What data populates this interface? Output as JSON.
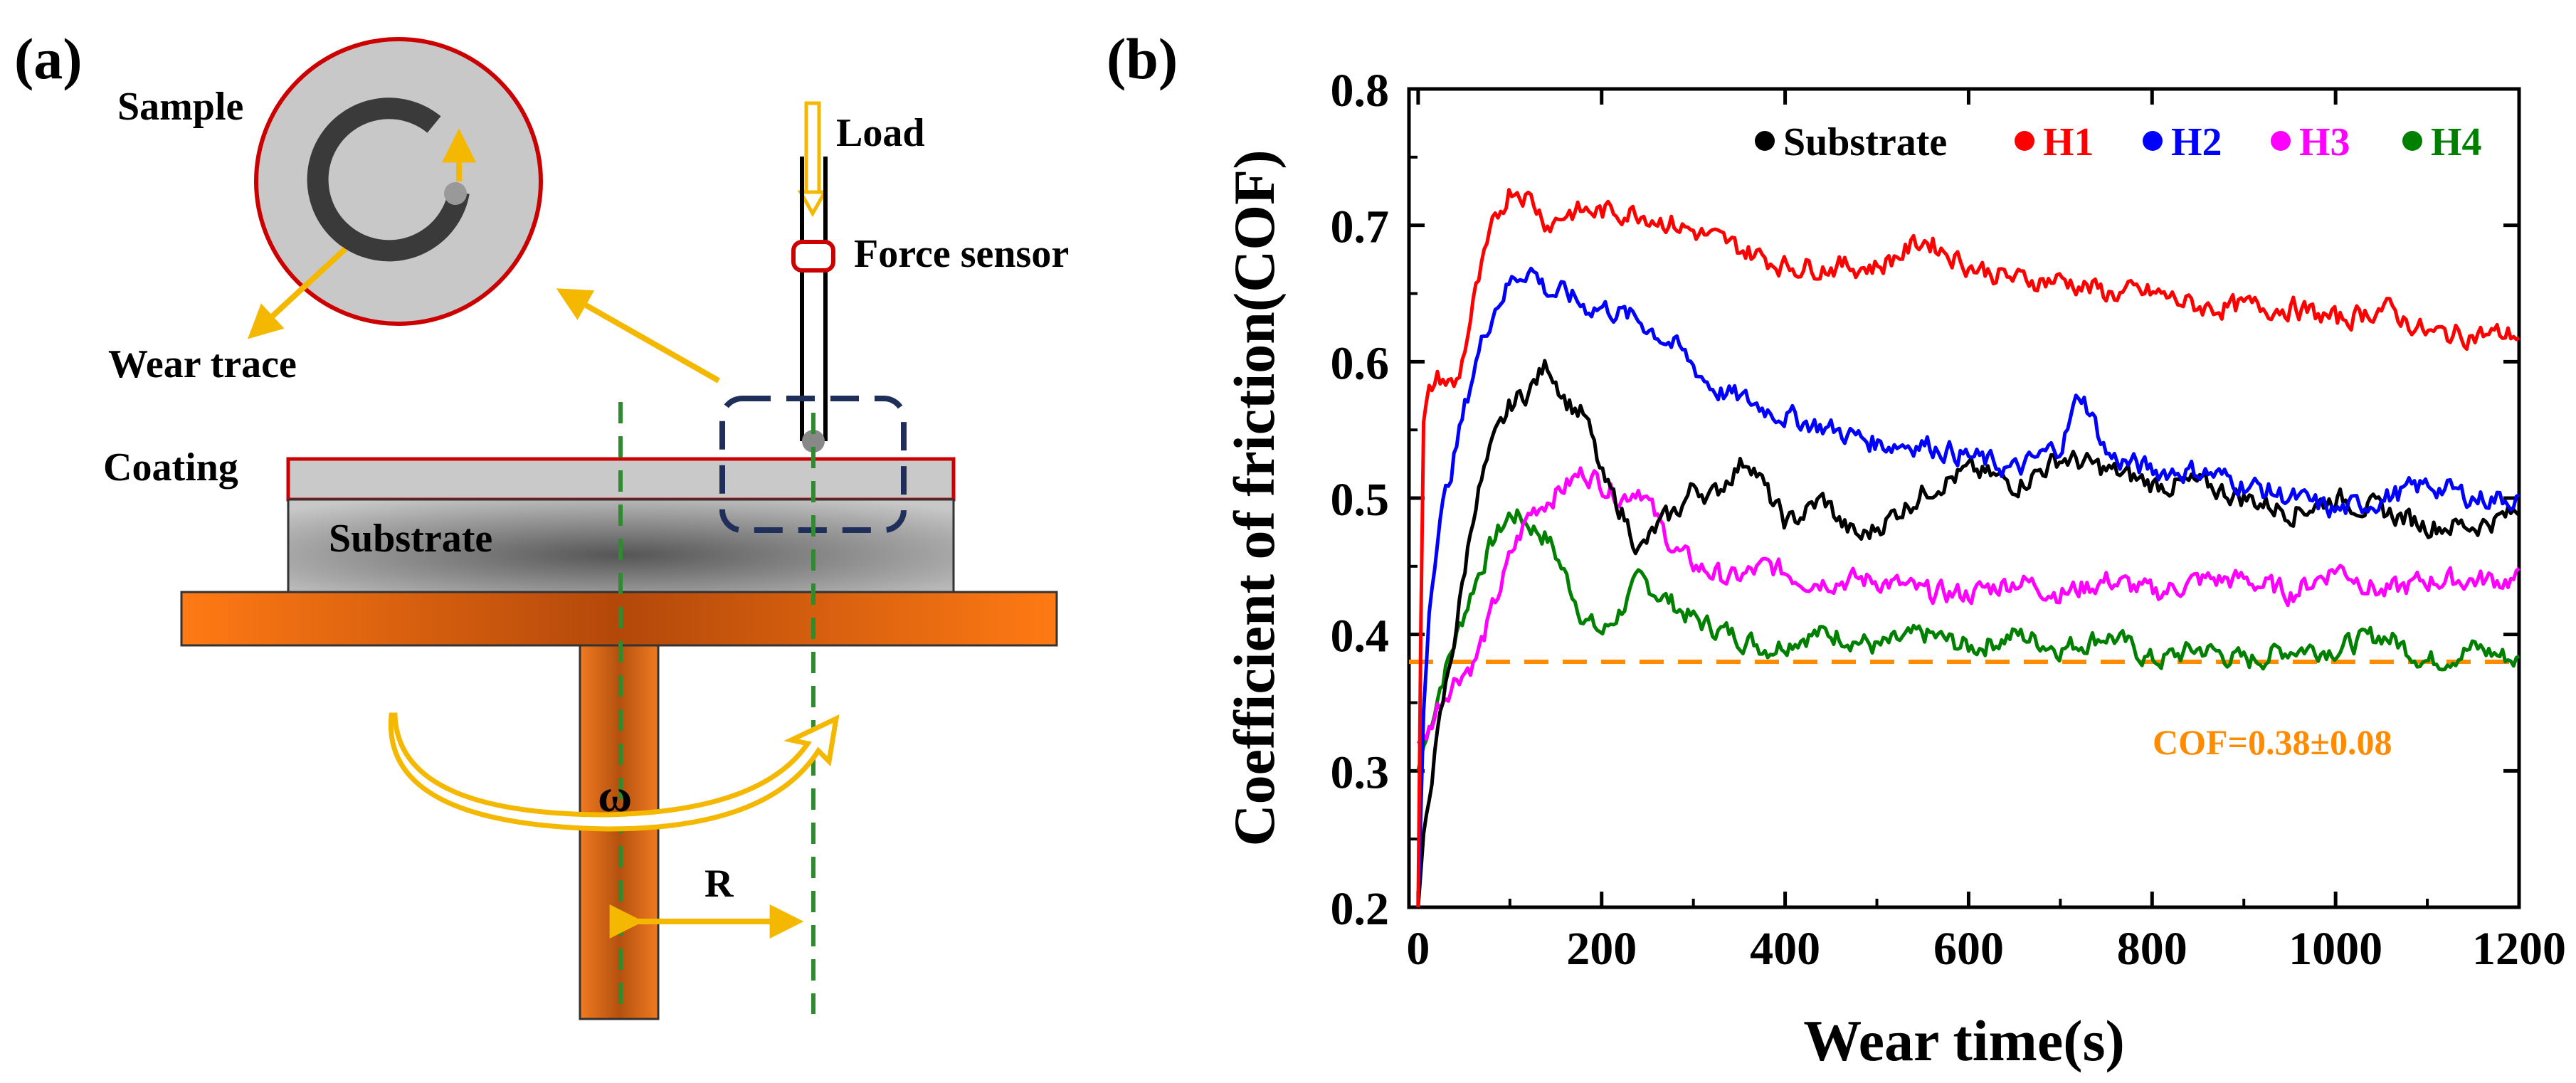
{
  "colors": {
    "substrate": "#000000",
    "H1": "#ff0000",
    "H2": "#0000ff",
    "H3": "#ff00ff",
    "H4": "#008000",
    "reference": "#ff8c00",
    "arrow": "#f5b800",
    "guide": "#2e8b2e",
    "coating_outline": "#cc0000",
    "stage": "#e8731a"
  },
  "panel_a": {
    "label": "(a)",
    "sample_label": "Sample",
    "wear_trace_label": "Wear trace",
    "load_label": "Load",
    "force_sensor_label": "Force sensor",
    "coating_label": "Coating",
    "substrate_label": "Substrate",
    "omega_label": "ω",
    "radius_label": "R"
  },
  "panel_b": {
    "label": "(b)",
    "reference_label": "COF=0.38±0.08"
  },
  "chart_data": {
    "type": "line",
    "title": "",
    "xlabel": "Wear time(s)",
    "ylabel": "Coefficient of friction(COF)",
    "xlim": [
      -10,
      1200
    ],
    "ylim": [
      0.2,
      0.8
    ],
    "xticks": [
      0,
      200,
      400,
      600,
      800,
      1000,
      1200
    ],
    "yticks": [
      0.2,
      0.3,
      0.4,
      0.5,
      0.6,
      0.7,
      0.8
    ],
    "xtick_labels": [
      "0",
      "200",
      "400",
      "600",
      "800",
      "1000",
      "1200"
    ],
    "ytick_labels": [
      "0.2",
      "0.3",
      "0.4",
      "0.5",
      "0.6",
      "0.7",
      "0.8"
    ],
    "legend_position": "top-right",
    "reference_line": {
      "y": 0.38,
      "label": "COF=0.38±0.08"
    },
    "series": [
      {
        "name": "Substrate",
        "x": [
          0,
          10,
          20,
          40,
          60,
          80,
          100,
          120,
          140,
          160,
          180,
          200,
          220,
          240,
          260,
          280,
          300,
          320,
          340,
          360,
          380,
          400,
          420,
          440,
          460,
          480,
          500,
          520,
          540,
          560,
          600,
          650,
          700,
          750,
          800,
          850,
          900,
          950,
          1000,
          1050,
          1100,
          1150,
          1200
        ],
        "values": [
          0.2,
          0.29,
          0.33,
          0.41,
          0.5,
          0.54,
          0.57,
          0.58,
          0.6,
          0.57,
          0.56,
          0.51,
          0.49,
          0.46,
          0.48,
          0.49,
          0.51,
          0.5,
          0.52,
          0.53,
          0.5,
          0.48,
          0.49,
          0.5,
          0.48,
          0.47,
          0.48,
          0.49,
          0.5,
          0.51,
          0.52,
          0.51,
          0.53,
          0.52,
          0.51,
          0.51,
          0.5,
          0.49,
          0.5,
          0.49,
          0.48,
          0.48,
          0.49
        ]
      },
      {
        "name": "H1",
        "x": [
          0,
          5,
          10,
          20,
          40,
          60,
          80,
          100,
          120,
          140,
          160,
          180,
          200,
          240,
          280,
          320,
          360,
          400,
          450,
          500,
          550,
          600,
          650,
          700,
          750,
          800,
          850,
          900,
          950,
          1000,
          1050,
          1100,
          1150,
          1200
        ],
        "values": [
          0.2,
          0.55,
          0.58,
          0.59,
          0.58,
          0.65,
          0.7,
          0.73,
          0.72,
          0.7,
          0.71,
          0.71,
          0.71,
          0.71,
          0.7,
          0.69,
          0.68,
          0.67,
          0.67,
          0.67,
          0.69,
          0.67,
          0.66,
          0.66,
          0.65,
          0.65,
          0.64,
          0.64,
          0.64,
          0.63,
          0.64,
          0.62,
          0.62,
          0.62
        ]
      },
      {
        "name": "H2",
        "x": [
          0,
          10,
          20,
          40,
          60,
          80,
          100,
          120,
          140,
          160,
          180,
          200,
          240,
          280,
          320,
          360,
          400,
          450,
          500,
          550,
          600,
          650,
          700,
          720,
          750,
          800,
          850,
          900,
          950,
          1000,
          1050,
          1100,
          1150,
          1200
        ],
        "values": [
          0.2,
          0.44,
          0.48,
          0.54,
          0.6,
          0.64,
          0.66,
          0.67,
          0.65,
          0.65,
          0.64,
          0.64,
          0.63,
          0.61,
          0.58,
          0.57,
          0.56,
          0.55,
          0.54,
          0.54,
          0.53,
          0.52,
          0.54,
          0.58,
          0.53,
          0.52,
          0.52,
          0.51,
          0.5,
          0.49,
          0.5,
          0.51,
          0.5,
          0.5
        ]
      },
      {
        "name": "H3",
        "x": [
          0,
          10,
          20,
          40,
          60,
          80,
          100,
          120,
          140,
          160,
          180,
          200,
          220,
          240,
          260,
          280,
          300,
          340,
          380,
          420,
          460,
          500,
          550,
          600,
          650,
          700,
          750,
          800,
          850,
          900,
          950,
          1000,
          1050,
          1100,
          1150,
          1200
        ],
        "values": [
          0.32,
          0.33,
          0.35,
          0.37,
          0.38,
          0.42,
          0.46,
          0.49,
          0.5,
          0.51,
          0.52,
          0.51,
          0.5,
          0.51,
          0.48,
          0.46,
          0.45,
          0.44,
          0.45,
          0.44,
          0.44,
          0.44,
          0.43,
          0.43,
          0.44,
          0.43,
          0.44,
          0.43,
          0.44,
          0.44,
          0.43,
          0.45,
          0.43,
          0.44,
          0.44,
          0.44
        ]
      },
      {
        "name": "H4",
        "x": [
          0,
          10,
          20,
          40,
          60,
          80,
          100,
          120,
          140,
          160,
          180,
          200,
          220,
          240,
          260,
          280,
          300,
          340,
          380,
          420,
          460,
          500,
          550,
          600,
          650,
          700,
          750,
          800,
          850,
          900,
          950,
          1000,
          1050,
          1100,
          1150,
          1200
        ],
        "values": [
          0.3,
          0.33,
          0.36,
          0.4,
          0.44,
          0.47,
          0.49,
          0.48,
          0.47,
          0.44,
          0.41,
          0.4,
          0.42,
          0.44,
          0.43,
          0.42,
          0.41,
          0.4,
          0.39,
          0.4,
          0.4,
          0.39,
          0.4,
          0.39,
          0.4,
          0.39,
          0.4,
          0.38,
          0.39,
          0.38,
          0.39,
          0.39,
          0.4,
          0.38,
          0.39,
          0.38
        ]
      }
    ]
  }
}
